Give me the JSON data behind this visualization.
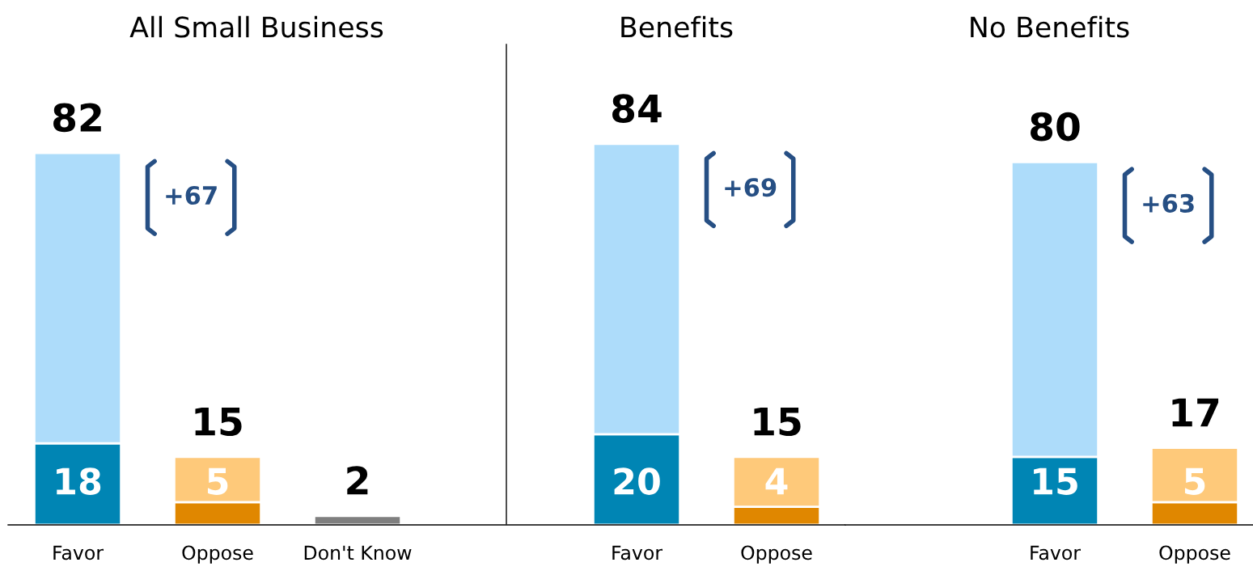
{
  "chart_data": [
    {
      "type": "bar",
      "title": "All Small Business",
      "stacked": true,
      "tick_labels": "x",
      "grid": false,
      "legend": false,
      "categories": [
        "Favor",
        "Oppose",
        "Don't Know"
      ],
      "series": [
        {
          "values": [
            18,
            5,
            2
          ],
          "colors": [
            "#0085b4",
            "#e08700",
            "#7f7f7f"
          ],
          "value_labels": [
            "18",
            "5",
            null
          ]
        },
        {
          "values": [
            64,
            10,
            null
          ],
          "colors": [
            "#addcfa",
            "#fec97a",
            null
          ]
        }
      ],
      "totals": [
        "82",
        "15",
        "2"
      ],
      "annotations": [
        "+67"
      ]
    },
    {
      "type": "bar",
      "title": "Benefits",
      "stacked": true,
      "tick_labels": "x",
      "grid": false,
      "legend": false,
      "categories": [
        "Favor",
        "Oppose"
      ],
      "series": [
        {
          "values": [
            20,
            4
          ],
          "colors": [
            "#0085b4",
            "#e08700"
          ],
          "value_labels": [
            "20",
            "4"
          ]
        },
        {
          "values": [
            64,
            11
          ],
          "colors": [
            "#addcfa",
            "#fec97a"
          ]
        }
      ],
      "totals": [
        "84",
        "15"
      ],
      "annotations": [
        "+69"
      ]
    },
    {
      "type": "bar",
      "title": "No Benefits",
      "stacked": true,
      "tick_labels": "x",
      "grid": false,
      "legend": false,
      "categories": [
        "Favor",
        "Oppose"
      ],
      "series": [
        {
          "values": [
            15,
            5
          ],
          "colors": [
            "#0085b4",
            "#e08700"
          ],
          "value_labels": [
            "15",
            "5"
          ]
        },
        {
          "values": [
            65,
            12
          ],
          "colors": [
            "#addcfa",
            "#fec97a"
          ]
        }
      ],
      "totals": [
        "80",
        "17"
      ],
      "annotations": [
        "+63"
      ]
    }
  ]
}
